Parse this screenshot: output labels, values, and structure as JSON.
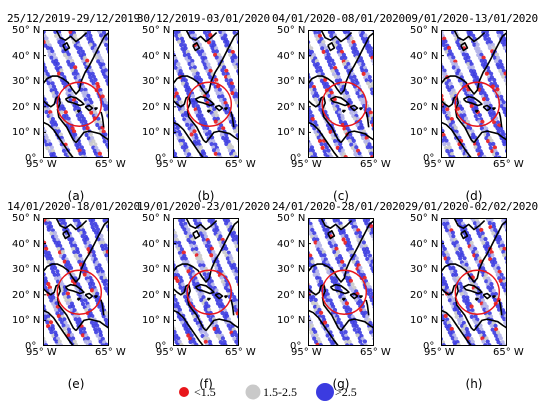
{
  "chart_data": {
    "type": "map",
    "ylabels": [
      "50° N",
      "40° N",
      "30° N",
      "20° N",
      "10° N",
      "0°"
    ],
    "xlabel_left": "95° W",
    "xlabel_right": "65° W",
    "panels": [
      {
        "label": "(a)",
        "title": "25/12/2019-29/12/2019"
      },
      {
        "label": "(b)",
        "title": "30/12/2019-03/01/2020"
      },
      {
        "label": "(c)",
        "title": "04/01/2020-08/01/2020"
      },
      {
        "label": "(d)",
        "title": "09/01/2020-13/01/2020"
      },
      {
        "label": "(e)",
        "title": "14/01/2020-18/01/2020"
      },
      {
        "label": "(f)",
        "title": "19/01/2020-23/01/2020"
      },
      {
        "label": "(g)",
        "title": "24/01/2020-28/01/2020"
      },
      {
        "label": "(h)",
        "title": "29/01/2020-02/02/2020"
      }
    ],
    "legend": [
      {
        "label": "<1.5",
        "color": "#e8161b"
      },
      {
        "label": "1.5-2.5",
        "color": "#c9c9c9"
      },
      {
        "label": ">2.5",
        "color": "#3b3be0"
      }
    ]
  }
}
